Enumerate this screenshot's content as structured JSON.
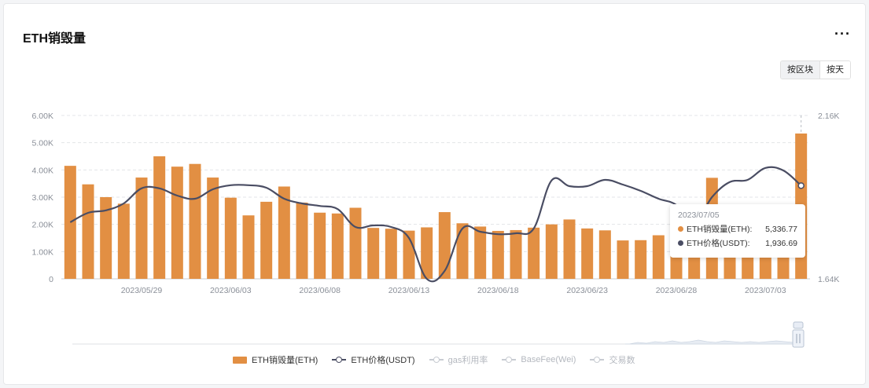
{
  "header": {
    "title": "ETH销毁量",
    "more_label": "···"
  },
  "toggle": {
    "options": [
      "按区块",
      "按天"
    ],
    "active": 0
  },
  "colors": {
    "bar": "#e28f43",
    "line": "#4a4d63",
    "grid": "#e3e5e8",
    "axis": "#8a8f98"
  },
  "legend": {
    "items": [
      {
        "label": "ETH销毁量(ETH)",
        "type": "bar",
        "color": "#e28f43",
        "active": true
      },
      {
        "label": "ETH价格(USDT)",
        "type": "line",
        "color": "#4a4d63",
        "active": true
      },
      {
        "label": "gas利用率",
        "type": "line",
        "color": "#c8ccd2",
        "active": false
      },
      {
        "label": "BaseFee(Wei)",
        "type": "line",
        "color": "#c8ccd2",
        "active": false
      },
      {
        "label": "交易数",
        "type": "line",
        "color": "#c8ccd2",
        "active": false
      }
    ]
  },
  "tooltip": {
    "date": "2023/07/05",
    "rows": [
      {
        "label": "ETH销毁量(ETH):",
        "value": "5,336.77",
        "color": "#e28f43"
      },
      {
        "label": "ETH价格(USDT):",
        "value": "1,936.69",
        "color": "#4a4d63"
      }
    ]
  },
  "chart_data": {
    "type": "bar",
    "x": [
      "2023/05/25",
      "2023/05/26",
      "2023/05/27",
      "2023/05/28",
      "2023/05/29",
      "2023/05/30",
      "2023/05/31",
      "2023/06/01",
      "2023/06/02",
      "2023/06/03",
      "2023/06/04",
      "2023/06/05",
      "2023/06/06",
      "2023/06/07",
      "2023/06/08",
      "2023/06/09",
      "2023/06/10",
      "2023/06/11",
      "2023/06/12",
      "2023/06/13",
      "2023/06/14",
      "2023/06/15",
      "2023/06/16",
      "2023/06/17",
      "2023/06/18",
      "2023/06/19",
      "2023/06/20",
      "2023/06/21",
      "2023/06/22",
      "2023/06/23",
      "2023/06/24",
      "2023/06/25",
      "2023/06/26",
      "2023/06/27",
      "2023/06/28",
      "2023/06/29",
      "2023/06/30",
      "2023/07/01",
      "2023/07/02",
      "2023/07/03",
      "2023/07/04",
      "2023/07/05"
    ],
    "x_tick_labels": [
      "2023/05/29",
      "2023/06/03",
      "2023/06/08",
      "2023/06/13",
      "2023/06/18",
      "2023/06/23",
      "2023/06/28",
      "2023/07/03"
    ],
    "series": [
      {
        "name": "ETH销毁量(ETH)",
        "type": "bar",
        "axis": "left",
        "values": [
          4150,
          3470,
          3000,
          2760,
          3720,
          4500,
          4120,
          4220,
          3720,
          2980,
          2330,
          2830,
          3390,
          2800,
          2430,
          2400,
          2610,
          1870,
          1840,
          1770,
          1890,
          2450,
          2040,
          1920,
          1760,
          1790,
          1880,
          2000,
          2180,
          1850,
          1780,
          1410,
          1420,
          1600,
          2000,
          2100,
          3710,
          2300,
          2200,
          2300,
          2300,
          5336.77
        ]
      },
      {
        "name": "ETH价格(USDT)",
        "type": "line",
        "axis": "right",
        "values": [
          1820,
          1850,
          1858,
          1880,
          1928,
          1928,
          1905,
          1895,
          1925,
          1938,
          1938,
          1930,
          1895,
          1880,
          1872,
          1862,
          1805,
          1810,
          1805,
          1770,
          1640,
          1665,
          1800,
          1790,
          1782,
          1785,
          1800,
          1953,
          1935,
          1935,
          1955,
          1940,
          1920,
          1895,
          1875,
          1815,
          1900,
          1948,
          1955,
          1993,
          1985,
          1936.69
        ]
      }
    ],
    "y_left": {
      "ticks": [
        "0",
        "1.00K",
        "2.00K",
        "3.00K",
        "4.00K",
        "5.00K",
        "6.00K"
      ],
      "range": [
        0,
        6000
      ]
    },
    "y_right": {
      "ticks": [
        "1.64K",
        "2.16K"
      ],
      "range": [
        1640,
        2160
      ]
    },
    "grid": true,
    "legend_position": "bottom"
  }
}
